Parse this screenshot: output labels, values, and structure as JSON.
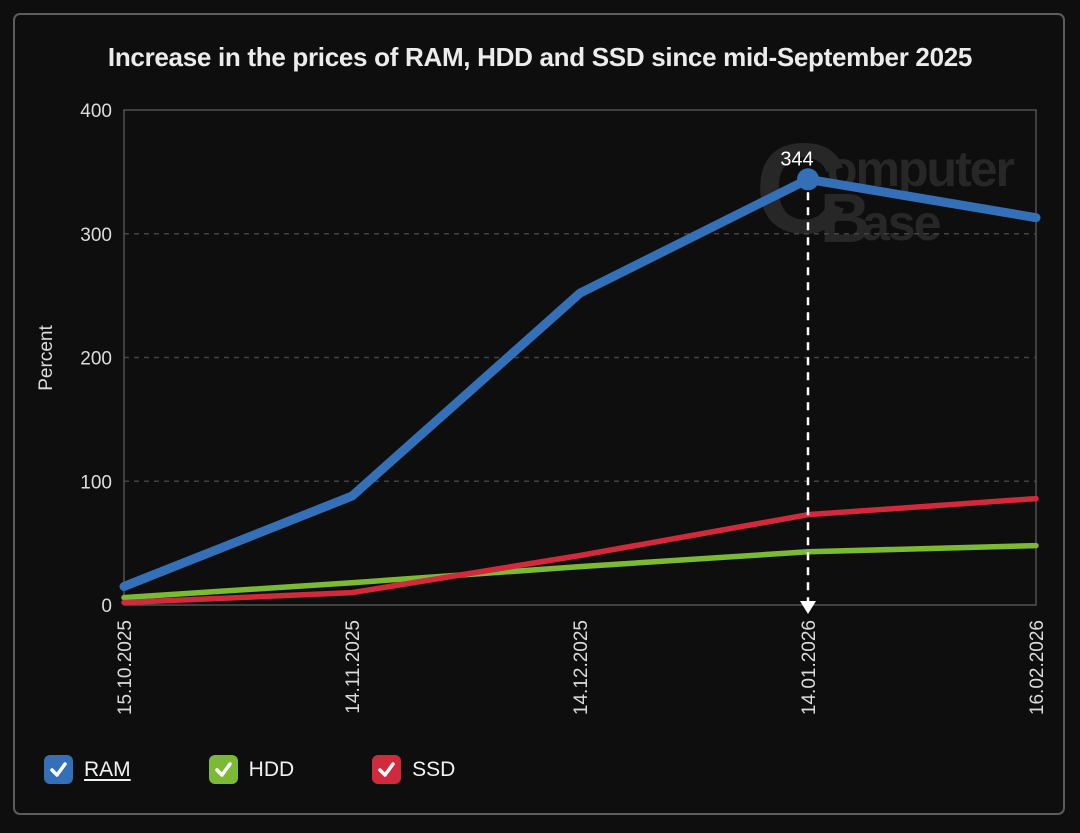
{
  "chart_data": {
    "type": "line",
    "title": "Increase in the prices of RAM, HDD and SSD since mid-September 2025",
    "xlabel": "",
    "ylabel": "Percent",
    "ylim": [
      0,
      400
    ],
    "yticks": [
      0,
      100,
      200,
      300,
      400
    ],
    "grid": true,
    "legend_position": "bottom",
    "categories": [
      "15.10.2025",
      "14.11.2025",
      "14.12.2025",
      "14.01.2026",
      "16.02.2026"
    ],
    "series": [
      {
        "name": "RAM",
        "color": "#3470b8",
        "values": [
          15,
          88,
          252,
          344,
          313
        ]
      },
      {
        "name": "HDD",
        "color": "#7cba35",
        "values": [
          6,
          18,
          31,
          43,
          48
        ]
      },
      {
        "name": "SSD",
        "color": "#d02a3c",
        "values": [
          2,
          10,
          40,
          73,
          86
        ]
      }
    ],
    "draw_order": [
      1,
      2,
      0
    ],
    "annotation": {
      "series": "RAM",
      "index": 3,
      "value": 344,
      "label": "344"
    }
  },
  "legend": {
    "items": [
      {
        "label": "RAM",
        "checked": true,
        "underlined": true
      },
      {
        "label": "HDD",
        "checked": true,
        "underlined": false
      },
      {
        "label": "SSD",
        "checked": true,
        "underlined": false
      }
    ]
  },
  "watermark": {
    "line1_initial": "C",
    "line1_rest": "omputer",
    "line2_initial": "B",
    "line2_rest": "ase"
  }
}
